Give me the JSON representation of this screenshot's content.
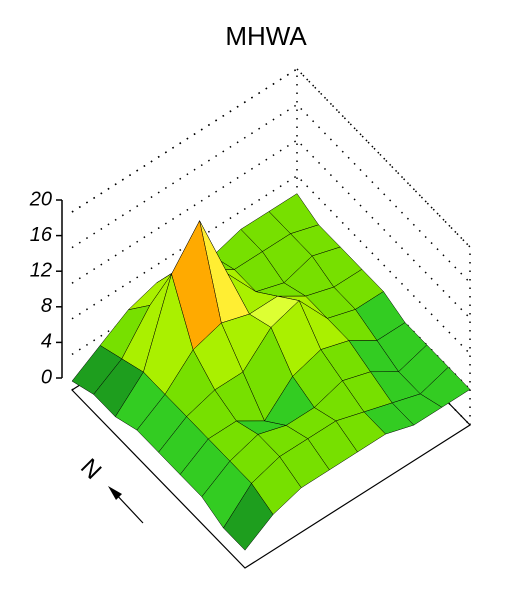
{
  "chart_data": {
    "type": "surface",
    "title": "MHWA",
    "compass_label": "N",
    "zlim": [
      0,
      20
    ],
    "zticks": [
      0,
      4,
      8,
      12,
      16,
      20
    ],
    "grid": true,
    "colormap": [
      "#9a9a9a",
      "#1e9e1e",
      "#33cc22",
      "#77e000",
      "#aaf000",
      "#ddff33",
      "#ffee33",
      "#ffaa00",
      "#ff6600",
      "#dd1100",
      "#8b1a00",
      "#3a0500"
    ],
    "z": [
      [
        1,
        3,
        5,
        6,
        6,
        5,
        6,
        6,
        6
      ],
      [
        2,
        4,
        8,
        10,
        8,
        6,
        6,
        6,
        5
      ],
      [
        2,
        5,
        14,
        18,
        10,
        6,
        5,
        6,
        5
      ],
      [
        3,
        5,
        8,
        9,
        8,
        8,
        6,
        5,
        5
      ],
      [
        3,
        5,
        6,
        6,
        9,
        10,
        6,
        5,
        5
      ],
      [
        3,
        5,
        5,
        3,
        6,
        7,
        6,
        4,
        4
      ],
      [
        3,
        5,
        6,
        5,
        5,
        6,
        5,
        3,
        4
      ],
      [
        2,
        5,
        6,
        6,
        6,
        5,
        4,
        3,
        4
      ],
      [
        2,
        4,
        5,
        5,
        5,
        5,
        4,
        4,
        4
      ]
    ]
  }
}
